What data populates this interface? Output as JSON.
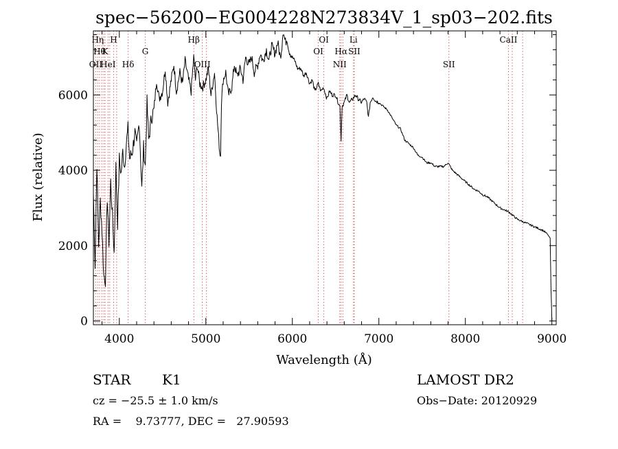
{
  "chart_data": {
    "type": "line",
    "title": "spec−56200−EG004228N273834V_1_sp03−202.fits",
    "xlabel": "Wavelength (Å)",
    "ylabel": "Flux (relative)",
    "xlim": [
      3700,
      9050
    ],
    "ylim": [
      -100,
      7700
    ],
    "xticks": [
      4000,
      5000,
      6000,
      7000,
      8000,
      9000
    ],
    "yticks": [
      0,
      2000,
      4000,
      6000
    ],
    "grid": false,
    "line_color": "#000000",
    "line_marker_color": "#d04040",
    "series": [
      {
        "x": [
          3700,
          3720,
          3740,
          3760,
          3780,
          3800,
          3820,
          3840,
          3860,
          3880,
          3900,
          3920,
          3940,
          3960,
          3980,
          4000,
          4020,
          4040,
          4060,
          4080,
          4100,
          4120,
          4150,
          4180,
          4200,
          4230,
          4260,
          4280,
          4300,
          4320,
          4340,
          4370,
          4400,
          4430,
          4460,
          4500,
          4530,
          4560,
          4600,
          4630,
          4660,
          4700,
          4730,
          4760,
          4800,
          4830,
          4860,
          4880,
          4900,
          4930,
          4960,
          5000,
          5030,
          5060,
          5100,
          5130,
          5160,
          5170,
          5180,
          5200,
          5230,
          5260,
          5300,
          5330,
          5360,
          5400,
          5430,
          5460,
          5500,
          5530,
          5560,
          5600,
          5630,
          5660,
          5700,
          5730,
          5760,
          5800,
          5830,
          5860,
          5880,
          5890,
          5900,
          5920,
          5940,
          5960,
          5980,
          6000,
          6030,
          6060,
          6100,
          6130,
          6160,
          6200,
          6230,
          6260,
          6300,
          6330,
          6360,
          6400,
          6430,
          6460,
          6500,
          6530,
          6550,
          6563,
          6575,
          6600,
          6630,
          6660,
          6700,
          6730,
          6760,
          6800,
          6830,
          6860,
          6880,
          6900,
          6930,
          6960,
          7000,
          7050,
          7100,
          7150,
          7200,
          7250,
          7300,
          7350,
          7400,
          7450,
          7500,
          7550,
          7600,
          7650,
          7700,
          7750,
          7800,
          7850,
          7900,
          7950,
          8000,
          8050,
          8100,
          8150,
          8200,
          8250,
          8300,
          8350,
          8400,
          8450,
          8500,
          8550,
          8600,
          8650,
          8700,
          8750,
          8800,
          8850,
          8900,
          8950,
          8980,
          8990,
          9000
        ],
        "y": [
          3400,
          1500,
          4200,
          2000,
          3200,
          2400,
          1200,
          1100,
          3300,
          2100,
          3700,
          2800,
          1800,
          4100,
          2600,
          4300,
          3900,
          4500,
          4100,
          4700,
          5100,
          4300,
          4500,
          5000,
          4600,
          5300,
          3500,
          4600,
          4100,
          5800,
          4800,
          5400,
          5600,
          6400,
          5900,
          6100,
          6700,
          5800,
          6400,
          6800,
          6100,
          6600,
          6300,
          6900,
          6400,
          6100,
          7000,
          6400,
          6800,
          6300,
          6200,
          6400,
          6700,
          6000,
          6600,
          5400,
          4500,
          4400,
          5800,
          6400,
          6600,
          6000,
          6200,
          6800,
          6500,
          6700,
          6400,
          7000,
          6800,
          7000,
          6600,
          6800,
          7100,
          6900,
          7200,
          6900,
          7300,
          7100,
          7400,
          7000,
          7300,
          7700,
          7600,
          7400,
          7500,
          7200,
          7100,
          7000,
          6900,
          6700,
          6700,
          6500,
          6600,
          6300,
          6400,
          6100,
          6300,
          6100,
          6200,
          5900,
          6100,
          6000,
          6000,
          5800,
          5700,
          4800,
          5700,
          5800,
          6000,
          5800,
          5900,
          6000,
          5900,
          5800,
          5900,
          5800,
          5400,
          5800,
          5950,
          5850,
          5800,
          5700,
          5600,
          5400,
          5200,
          5100,
          4800,
          4700,
          4600,
          4400,
          4350,
          4200,
          4200,
          4100,
          4100,
          4100,
          4200,
          4000,
          3900,
          3800,
          3700,
          3600,
          3500,
          3450,
          3350,
          3300,
          3200,
          3100,
          3000,
          2950,
          2900,
          2800,
          2700,
          2650,
          2600,
          2550,
          2500,
          2450,
          2400,
          2300,
          2200,
          900,
          0
        ]
      }
    ],
    "lines": [
      {
        "x": 3727,
        "row": 3,
        "label": "OII"
      },
      {
        "x": 3750,
        "row": 1,
        "label": "Hη"
      },
      {
        "x": 3771,
        "row": 2,
        "label": "Hθ"
      },
      {
        "x": 3798,
        "row": 0,
        "label": ""
      },
      {
        "x": 3820,
        "row": 0,
        "label": ""
      },
      {
        "x": 3835,
        "row": 2,
        "label": "K"
      },
      {
        "x": 3869,
        "row": 3,
        "label": "HeI"
      },
      {
        "x": 3889,
        "row": 0,
        "label": ""
      },
      {
        "x": 3934,
        "row": 1,
        "label": "H"
      },
      {
        "x": 3969,
        "row": 0,
        "label": ""
      },
      {
        "x": 4102,
        "row": 3,
        "label": "Hδ"
      },
      {
        "x": 4300,
        "row": 2,
        "label": "G"
      },
      {
        "x": 4861,
        "row": 1,
        "label": "Hβ"
      },
      {
        "x": 4959,
        "row": 3,
        "label": "OIII"
      },
      {
        "x": 5007,
        "row": 0,
        "label": ""
      },
      {
        "x": 6300,
        "row": 2,
        "label": "OI"
      },
      {
        "x": 6364,
        "row": 1,
        "label": "OI"
      },
      {
        "x": 6548,
        "row": 3,
        "label": "NII"
      },
      {
        "x": 6563,
        "row": 2,
        "label": "Hα"
      },
      {
        "x": 6584,
        "row": 0,
        "label": ""
      },
      {
        "x": 6707,
        "row": 1,
        "label": "Li"
      },
      {
        "x": 6716,
        "row": 2,
        "label": "SII"
      },
      {
        "x": 7810,
        "row": 3,
        "label": "SII"
      },
      {
        "x": 8498,
        "row": 1,
        "label": "CaII"
      },
      {
        "x": 8542,
        "row": 0,
        "label": ""
      },
      {
        "x": 8662,
        "row": 0,
        "label": ""
      }
    ]
  },
  "info": {
    "class": "STAR",
    "subclass": "K1",
    "survey": "LAMOST DR2",
    "cz": "cz = −25.5 ± 1.0 km/s",
    "obs_date": "Obs−Date: 20120929",
    "radec": "RA =    9.73777, DEC =   27.90593"
  }
}
